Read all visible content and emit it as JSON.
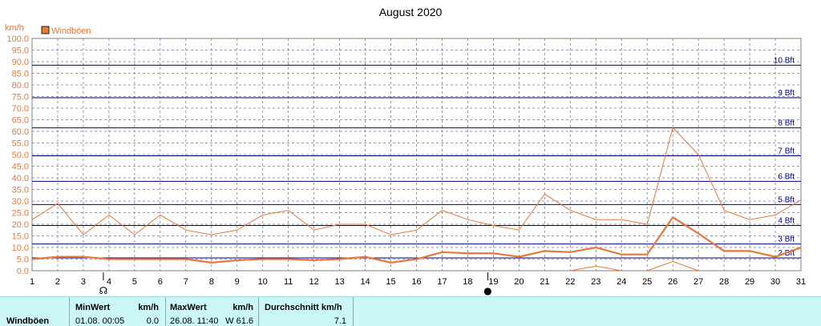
{
  "chart_data": {
    "type": "line",
    "title": "August 2020",
    "ylabel": "km/h",
    "ylim": [
      0,
      100
    ],
    "yticks": [
      "0.0",
      "5.0",
      "10.0",
      "15.0",
      "20.0",
      "25.0",
      "30.0",
      "35.0",
      "40.0",
      "45.0",
      "50.0",
      "55.0",
      "60.0",
      "65.0",
      "70.0",
      "75.0",
      "80.0",
      "85.0",
      "90.0",
      "95.0",
      "100.0"
    ],
    "x": [
      "1",
      "2",
      "3",
      "4",
      "5",
      "6",
      "7",
      "8",
      "9",
      "10",
      "11",
      "12",
      "13",
      "14",
      "15",
      "16",
      "17",
      "18",
      "19",
      "20",
      "21",
      "22",
      "23",
      "24",
      "25",
      "26",
      "27",
      "28",
      "29",
      "30",
      "31"
    ],
    "legend": "Windböen",
    "legend_position": "top-left",
    "grid": true,
    "beaufort": [
      {
        "label": "2 Bft",
        "value": 5.5
      },
      {
        "label": "3 Bft",
        "value": 11.5
      },
      {
        "label": "4 Bft",
        "value": 19.5
      },
      {
        "label": "5 Bft",
        "value": 28.5
      },
      {
        "label": "6 Bft",
        "value": 38.5
      },
      {
        "label": "7 Bft",
        "value": 49.5
      },
      {
        "label": "8 Bft",
        "value": 61.5
      },
      {
        "label": "9 Bft",
        "value": 74.5
      },
      {
        "label": "10 Bft",
        "value": 88.5
      }
    ],
    "series": [
      {
        "name": "Windböen",
        "kind": "max",
        "color": "#e8783c",
        "values": [
          22,
          29,
          15.5,
          24,
          15.5,
          24,
          17.5,
          15.5,
          17.5,
          24,
          26,
          17.5,
          20,
          20,
          15.5,
          17.5,
          26,
          22,
          19.5,
          17.5,
          33,
          26,
          22,
          22,
          20,
          61.6,
          50,
          26,
          22,
          24,
          30.5
        ]
      },
      {
        "name": "Windböen",
        "kind": "avg",
        "color": "#e8783c",
        "values": [
          5,
          6,
          6,
          5,
          5,
          5,
          5,
          3.5,
          4.5,
          5,
          5,
          4.5,
          5,
          6,
          3.5,
          5,
          8,
          7.5,
          7.5,
          6,
          8.5,
          8,
          10,
          7,
          7,
          23,
          16,
          8.5,
          8.5,
          6,
          10
        ]
      },
      {
        "name": "Windböen",
        "kind": "min",
        "color": "#e8783c",
        "segments": [
          [
            22,
            0
          ],
          [
            23,
            2
          ],
          [
            24,
            0
          ],
          null,
          [
            25,
            0
          ],
          [
            26,
            4
          ],
          [
            27,
            0
          ]
        ]
      }
    ],
    "markers": [
      {
        "day": 4,
        "symbol": "☊"
      },
      {
        "day": 19,
        "symbol": "●"
      }
    ],
    "colors": {
      "bft": "#000080",
      "grid": "#7a7a9a",
      "axis_text": "#e8783c",
      "series": "#e8783c"
    }
  },
  "stats": {
    "row_label": "Windböen",
    "min_header": "MinWert",
    "min_unit": "km/h",
    "min_date": "01.08.  00:05",
    "min_value": "0.0",
    "max_header": "MaxWert",
    "max_unit": "km/h",
    "max_date": "26.08.  11:40",
    "max_value": "W 61.6",
    "avg_header": "Durchschnitt km/h",
    "avg_value": "7.1"
  }
}
